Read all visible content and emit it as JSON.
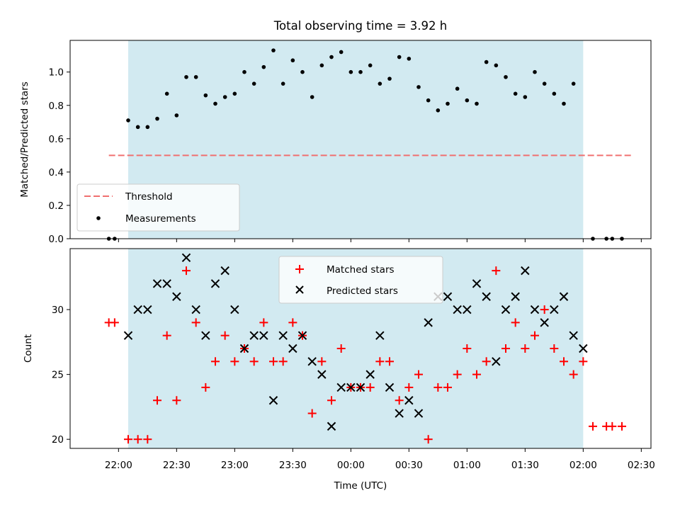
{
  "chart_data": [
    {
      "type": "scatter",
      "panel": "top",
      "title": "Total observing time = 3.92 h",
      "xlabel": "",
      "ylabel": "Matched/Predicted stars",
      "ylim": [
        0,
        1.19
      ],
      "yticks": [
        0.0,
        0.2,
        0.4,
        0.6,
        0.8,
        1.0
      ],
      "ytick_labels": [
        "0.0",
        "0.2",
        "0.4",
        "0.6",
        "0.8",
        "1.0"
      ],
      "observing_window": [
        "22:05",
        "02:00"
      ],
      "threshold": {
        "name": "Threshold",
        "value": 0.5,
        "x_range": [
          "21:55",
          "02:25"
        ],
        "color": "#f07070"
      },
      "series": [
        {
          "name": "Measurements",
          "color": "#000000",
          "x": [
            "21:55",
            "21:58",
            "22:05",
            "22:10",
            "22:15",
            "22:20",
            "22:25",
            "22:30",
            "22:35",
            "22:40",
            "22:45",
            "22:50",
            "22:55",
            "23:00",
            "23:05",
            "23:10",
            "23:15",
            "23:20",
            "23:25",
            "23:30",
            "23:35",
            "23:40",
            "23:45",
            "23:50",
            "23:55",
            "00:00",
            "00:05",
            "00:10",
            "00:15",
            "00:20",
            "00:25",
            "00:30",
            "00:35",
            "00:40",
            "00:45",
            "00:50",
            "00:55",
            "01:00",
            "01:05",
            "01:10",
            "01:15",
            "01:20",
            "01:25",
            "01:30",
            "01:35",
            "01:40",
            "01:45",
            "01:50",
            "01:55",
            "02:05",
            "02:12",
            "02:15",
            "02:20"
          ],
          "y": [
            0.0,
            0.0,
            0.71,
            0.67,
            0.67,
            0.72,
            0.87,
            0.74,
            0.97,
            0.97,
            0.86,
            0.81,
            0.85,
            0.87,
            1.0,
            0.93,
            1.03,
            1.13,
            0.93,
            1.07,
            1.0,
            0.85,
            1.04,
            1.09,
            1.12,
            1.0,
            1.0,
            1.04,
            0.93,
            0.96,
            1.09,
            1.08,
            0.91,
            0.83,
            0.77,
            0.81,
            0.9,
            0.83,
            0.81,
            1.06,
            1.04,
            0.97,
            0.87,
            0.85,
            1.0,
            0.93,
            0.87,
            0.81,
            0.93,
            0.0,
            0.0,
            0.0,
            0.0
          ]
        }
      ]
    },
    {
      "type": "scatter",
      "panel": "bottom",
      "title": "",
      "xlabel": "Time (UTC)",
      "ylabel": "Count",
      "ylim": [
        19.3,
        34.7
      ],
      "yticks": [
        20,
        25,
        30
      ],
      "ytick_labels": [
        "20",
        "25",
        "30"
      ],
      "xticks": [
        "22:00",
        "22:30",
        "23:00",
        "23:30",
        "00:00",
        "00:30",
        "01:00",
        "01:30",
        "02:00",
        "02:30"
      ],
      "x_range": [
        "21:35",
        "02:35"
      ],
      "observing_window": [
        "22:05",
        "02:00"
      ],
      "series": [
        {
          "name": "Matched stars",
          "marker": "plus",
          "color": "#ff0000",
          "x": [
            "21:55",
            "21:58",
            "22:05",
            "22:10",
            "22:15",
            "22:20",
            "22:25",
            "22:30",
            "22:35",
            "22:40",
            "22:45",
            "22:50",
            "22:55",
            "23:00",
            "23:05",
            "23:10",
            "23:15",
            "23:20",
            "23:25",
            "23:30",
            "23:35",
            "23:40",
            "23:45",
            "23:50",
            "23:55",
            "00:00",
            "00:05",
            "00:10",
            "00:15",
            "00:20",
            "00:25",
            "00:30",
            "00:35",
            "00:40",
            "00:45",
            "00:50",
            "00:55",
            "01:00",
            "01:05",
            "01:10",
            "01:15",
            "01:20",
            "01:25",
            "01:30",
            "01:35",
            "01:40",
            "01:45",
            "01:50",
            "01:55",
            "02:00",
            "02:05",
            "02:12",
            "02:15",
            "02:20"
          ],
          "y": [
            29,
            29,
            20,
            20,
            20,
            23,
            28,
            23,
            33,
            29,
            24,
            26,
            28,
            26,
            27,
            26,
            29,
            26,
            26,
            29,
            28,
            22,
            26,
            23,
            27,
            24,
            24,
            24,
            26,
            26,
            23,
            24,
            25,
            20,
            24,
            24,
            25,
            27,
            25,
            26,
            33,
            27,
            29,
            27,
            28,
            30,
            27,
            26,
            25,
            26,
            21,
            21,
            21,
            21
          ]
        },
        {
          "name": "Predicted stars",
          "marker": "x",
          "color": "#000000",
          "x": [
            "22:05",
            "22:10",
            "22:15",
            "22:20",
            "22:25",
            "22:30",
            "22:35",
            "22:40",
            "22:45",
            "22:50",
            "22:55",
            "23:00",
            "23:05",
            "23:10",
            "23:15",
            "23:20",
            "23:25",
            "23:30",
            "23:35",
            "23:40",
            "23:45",
            "23:50",
            "23:55",
            "00:00",
            "00:05",
            "00:10",
            "00:15",
            "00:20",
            "00:25",
            "00:30",
            "00:35",
            "00:40",
            "00:45",
            "00:50",
            "00:55",
            "01:00",
            "01:05",
            "01:10",
            "01:15",
            "01:20",
            "01:25",
            "01:30",
            "01:35",
            "01:40",
            "01:45",
            "01:50",
            "01:55",
            "02:00"
          ],
          "y": [
            28,
            30,
            30,
            32,
            32,
            31,
            34,
            30,
            28,
            32,
            33,
            30,
            27,
            28,
            28,
            23,
            28,
            27,
            28,
            26,
            25,
            21,
            24,
            24,
            24,
            25,
            28,
            24,
            22,
            23,
            22,
            29,
            31,
            31,
            30,
            30,
            32,
            31,
            26,
            30,
            31,
            33,
            30,
            29,
            30,
            31,
            28,
            27
          ]
        }
      ]
    }
  ],
  "legends": {
    "top": {
      "placement": "lower left",
      "entries": [
        "Threshold",
        "Measurements"
      ]
    },
    "bottom": {
      "placement": "upper center",
      "entries": [
        "Matched stars",
        "Predicted stars"
      ]
    }
  },
  "colors": {
    "observing_window": "#add8e6",
    "threshold": "#f07070",
    "matched": "#ff0000",
    "predicted": "#000000"
  }
}
